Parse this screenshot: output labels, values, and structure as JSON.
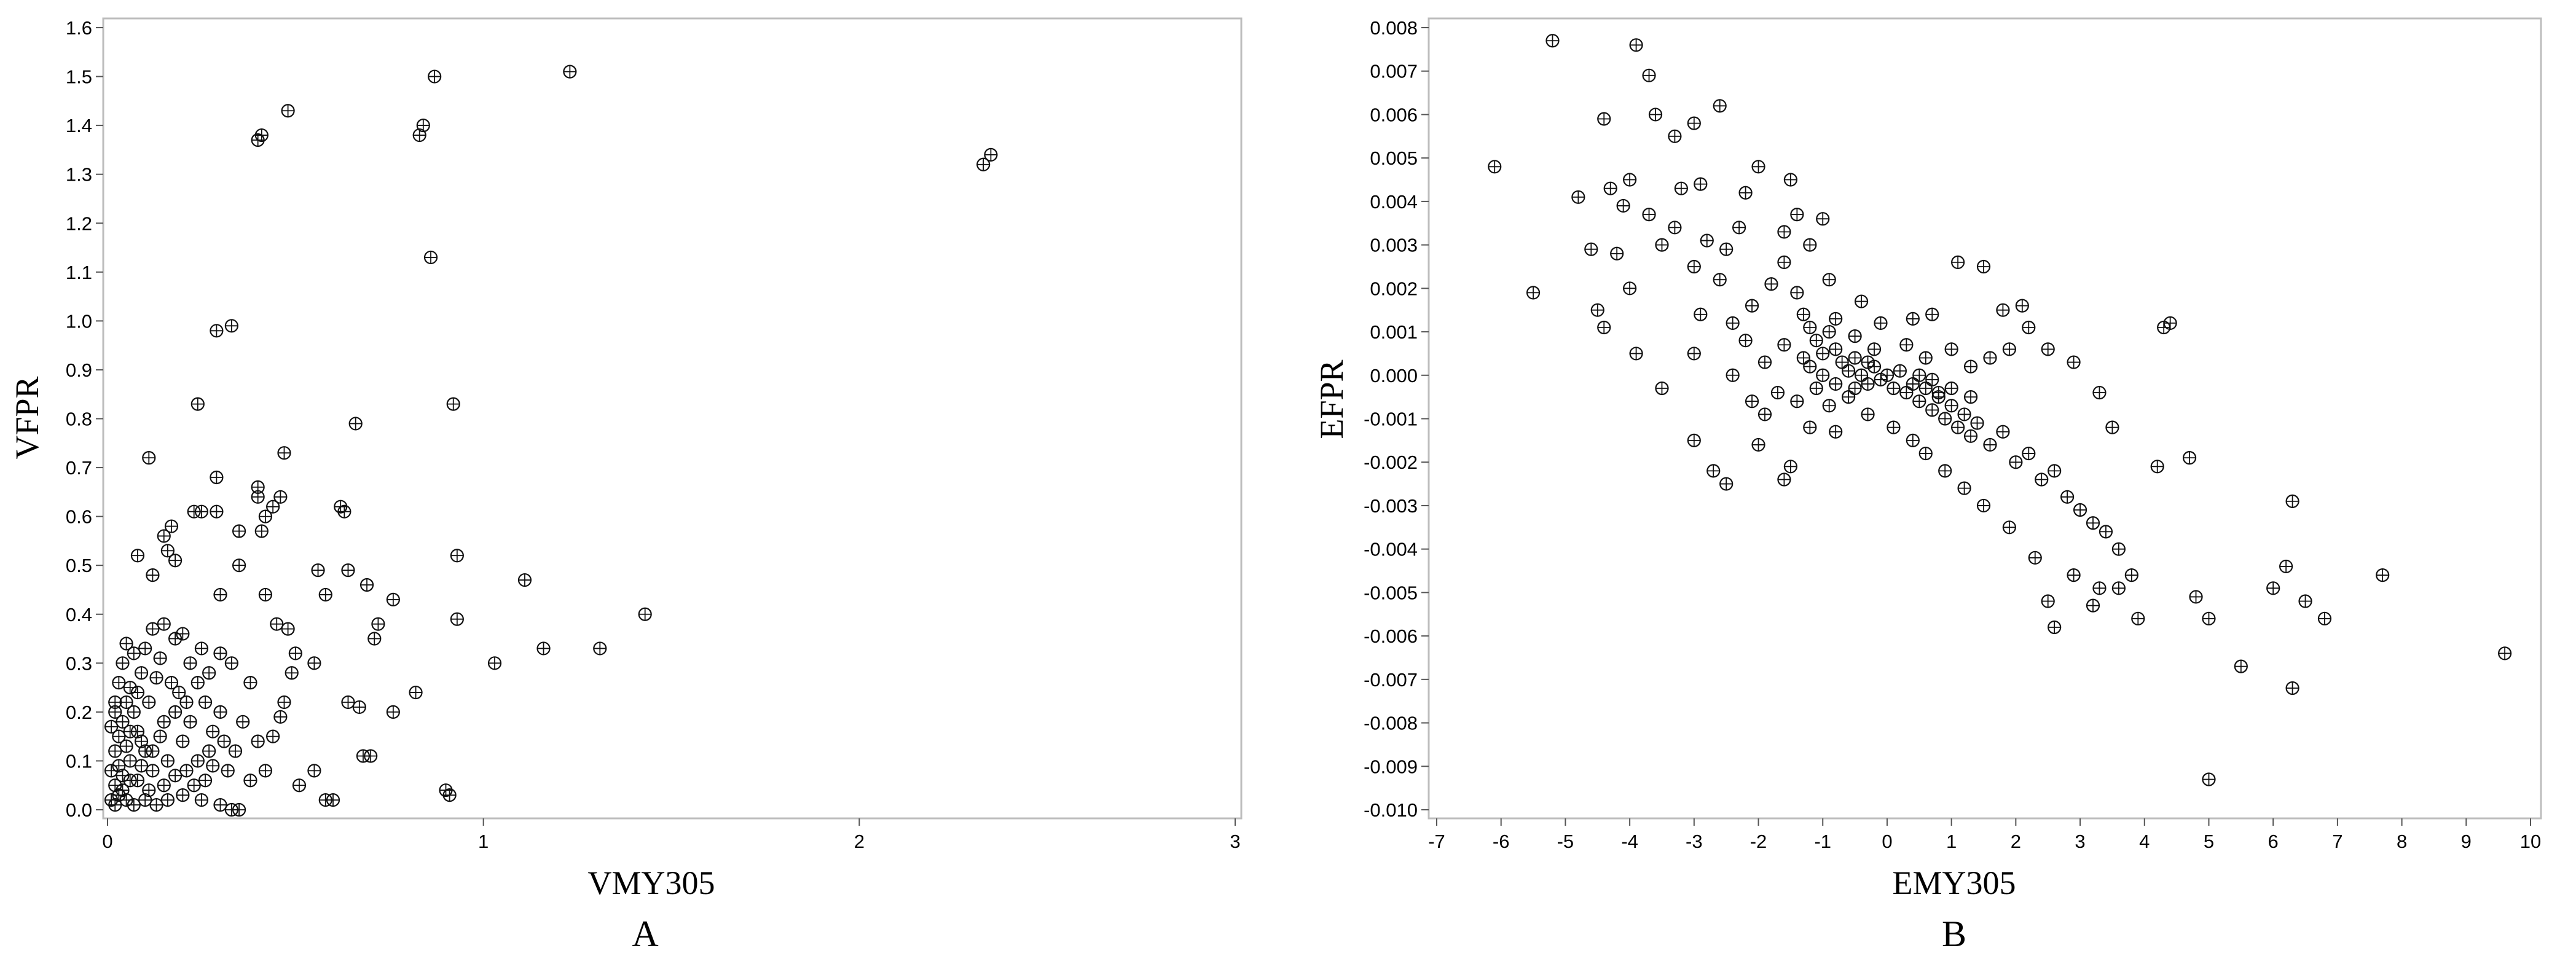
{
  "chart_data": [
    {
      "type": "scatter",
      "panel_label": "A",
      "xlabel": "VMY305",
      "ylabel": "VFPR",
      "xlim": [
        0,
        3
      ],
      "ylim": [
        0,
        1.6
      ],
      "x_ticks": [
        "0",
        "1",
        "2",
        "3"
      ],
      "x_tick_values": [
        0,
        1,
        2,
        3
      ],
      "y_ticks": [
        "0.0",
        "0.1",
        "0.2",
        "0.3",
        "0.4",
        "0.5",
        "0.6",
        "0.7",
        "0.8",
        "0.9",
        "1.0",
        "1.1",
        "1.2",
        "1.3",
        "1.4",
        "1.5",
        "1.6"
      ],
      "y_tick_values": [
        0,
        0.1,
        0.2,
        0.3,
        0.4,
        0.5,
        0.6,
        0.7,
        0.8,
        0.9,
        1.0,
        1.1,
        1.2,
        1.3,
        1.4,
        1.5,
        1.6
      ],
      "grid": false,
      "marker": "circle-plus",
      "points": [
        [
          0.48,
          1.43
        ],
        [
          0.41,
          1.38
        ],
        [
          0.4,
          1.37
        ],
        [
          0.84,
          1.4
        ],
        [
          0.83,
          1.38
        ],
        [
          0.87,
          1.5
        ],
        [
          1.23,
          1.51
        ],
        [
          2.35,
          1.34
        ],
        [
          2.33,
          1.32
        ],
        [
          0.86,
          1.13
        ],
        [
          0.29,
          0.98
        ],
        [
          0.33,
          0.99
        ],
        [
          0.24,
          0.83
        ],
        [
          0.92,
          0.83
        ],
        [
          0.66,
          0.79
        ],
        [
          0.11,
          0.72
        ],
        [
          0.47,
          0.73
        ],
        [
          0.29,
          0.68
        ],
        [
          0.4,
          0.66
        ],
        [
          0.4,
          0.64
        ],
        [
          0.46,
          0.64
        ],
        [
          0.44,
          0.62
        ],
        [
          0.42,
          0.6
        ],
        [
          0.41,
          0.57
        ],
        [
          0.63,
          0.61
        ],
        [
          0.62,
          0.62
        ],
        [
          0.25,
          0.61
        ],
        [
          0.23,
          0.61
        ],
        [
          0.29,
          0.61
        ],
        [
          0.35,
          0.57
        ],
        [
          0.17,
          0.58
        ],
        [
          0.15,
          0.56
        ],
        [
          0.16,
          0.53
        ],
        [
          0.18,
          0.51
        ],
        [
          0.08,
          0.52
        ],
        [
          0.35,
          0.5
        ],
        [
          0.12,
          0.48
        ],
        [
          0.56,
          0.49
        ],
        [
          0.64,
          0.49
        ],
        [
          0.93,
          0.52
        ],
        [
          1.11,
          0.47
        ],
        [
          0.58,
          0.44
        ],
        [
          0.69,
          0.46
        ],
        [
          0.42,
          0.44
        ],
        [
          0.3,
          0.44
        ],
        [
          0.45,
          0.38
        ],
        [
          0.48,
          0.37
        ],
        [
          0.72,
          0.38
        ],
        [
          0.71,
          0.35
        ],
        [
          0.76,
          0.43
        ],
        [
          0.93,
          0.39
        ],
        [
          1.43,
          0.4
        ],
        [
          0.5,
          0.32
        ],
        [
          0.55,
          0.3
        ],
        [
          1.31,
          0.33
        ],
        [
          1.16,
          0.33
        ],
        [
          1.03,
          0.3
        ],
        [
          0.49,
          0.28
        ],
        [
          0.64,
          0.22
        ],
        [
          0.67,
          0.21
        ],
        [
          0.76,
          0.2
        ],
        [
          0.82,
          0.24
        ],
        [
          0.47,
          0.22
        ],
        [
          0.46,
          0.19
        ],
        [
          0.44,
          0.15
        ],
        [
          0.68,
          0.11
        ],
        [
          0.7,
          0.11
        ],
        [
          0.51,
          0.05
        ],
        [
          0.55,
          0.08
        ],
        [
          0.6,
          0.02
        ],
        [
          0.58,
          0.02
        ],
        [
          0.91,
          0.03
        ],
        [
          0.9,
          0.04
        ],
        [
          0.38,
          0.26
        ],
        [
          0.33,
          0.3
        ],
        [
          0.3,
          0.32
        ],
        [
          0.27,
          0.28
        ],
        [
          0.25,
          0.33
        ],
        [
          0.22,
          0.3
        ],
        [
          0.2,
          0.36
        ],
        [
          0.18,
          0.35
        ],
        [
          0.15,
          0.38
        ],
        [
          0.12,
          0.37
        ],
        [
          0.1,
          0.33
        ],
        [
          0.09,
          0.28
        ],
        [
          0.07,
          0.32
        ],
        [
          0.06,
          0.25
        ],
        [
          0.05,
          0.22
        ],
        [
          0.04,
          0.18
        ],
        [
          0.03,
          0.15
        ],
        [
          0.02,
          0.12
        ],
        [
          0.01,
          0.08
        ],
        [
          0.02,
          0.05
        ],
        [
          0.03,
          0.03
        ],
        [
          0.05,
          0.02
        ],
        [
          0.07,
          0.01
        ],
        [
          0.1,
          0.02
        ],
        [
          0.13,
          0.01
        ],
        [
          0.16,
          0.02
        ],
        [
          0.2,
          0.03
        ],
        [
          0.25,
          0.02
        ],
        [
          0.3,
          0.01
        ],
        [
          0.35,
          0.0
        ],
        [
          0.33,
          0.0
        ],
        [
          0.04,
          0.07
        ],
        [
          0.06,
          0.1
        ],
        [
          0.08,
          0.06
        ],
        [
          0.1,
          0.12
        ],
        [
          0.12,
          0.08
        ],
        [
          0.14,
          0.15
        ],
        [
          0.16,
          0.1
        ],
        [
          0.18,
          0.2
        ],
        [
          0.2,
          0.14
        ],
        [
          0.22,
          0.18
        ],
        [
          0.24,
          0.1
        ],
        [
          0.26,
          0.22
        ],
        [
          0.28,
          0.16
        ],
        [
          0.3,
          0.2
        ],
        [
          0.32,
          0.08
        ],
        [
          0.34,
          0.12
        ],
        [
          0.36,
          0.18
        ],
        [
          0.38,
          0.06
        ],
        [
          0.4,
          0.14
        ],
        [
          0.42,
          0.08
        ],
        [
          0.02,
          0.2
        ],
        [
          0.03,
          0.26
        ],
        [
          0.04,
          0.3
        ],
        [
          0.05,
          0.34
        ],
        [
          0.06,
          0.16
        ],
        [
          0.07,
          0.2
        ],
        [
          0.08,
          0.24
        ],
        [
          0.09,
          0.14
        ],
        [
          0.11,
          0.22
        ],
        [
          0.13,
          0.27
        ],
        [
          0.14,
          0.31
        ],
        [
          0.17,
          0.26
        ],
        [
          0.19,
          0.24
        ],
        [
          0.21,
          0.08
        ],
        [
          0.23,
          0.05
        ],
        [
          0.26,
          0.06
        ],
        [
          0.28,
          0.09
        ],
        [
          0.31,
          0.14
        ],
        [
          0.01,
          0.02
        ],
        [
          0.02,
          0.01
        ],
        [
          0.03,
          0.09
        ],
        [
          0.05,
          0.13
        ],
        [
          0.08,
          0.16
        ],
        [
          0.11,
          0.04
        ],
        [
          0.15,
          0.05
        ],
        [
          0.18,
          0.07
        ],
        [
          0.01,
          0.17
        ],
        [
          0.02,
          0.22
        ],
        [
          0.04,
          0.04
        ],
        [
          0.06,
          0.06
        ],
        [
          0.09,
          0.09
        ],
        [
          0.12,
          0.12
        ],
        [
          0.15,
          0.18
        ],
        [
          0.21,
          0.22
        ],
        [
          0.24,
          0.26
        ],
        [
          0.27,
          0.12
        ]
      ]
    },
    {
      "type": "scatter",
      "panel_label": "B",
      "xlabel": "EMY305",
      "ylabel": "EFPR",
      "xlim": [
        -7,
        10
      ],
      "ylim": [
        -0.01,
        0.008
      ],
      "x_ticks": [
        "-7",
        "-6",
        "-5",
        "-4",
        "-3",
        "-2",
        "-1",
        "0",
        "1",
        "2",
        "3",
        "4",
        "5",
        "6",
        "7",
        "8",
        "9",
        "10"
      ],
      "x_tick_values": [
        -7,
        -6,
        -5,
        -4,
        -3,
        -2,
        -1,
        0,
        1,
        2,
        3,
        4,
        5,
        6,
        7,
        8,
        9,
        10
      ],
      "y_ticks": [
        "0.008",
        "0.007",
        "0.006",
        "0.005",
        "0.004",
        "0.003",
        "0.002",
        "0.001",
        "0.000",
        "-0.001",
        "-0.002",
        "-0.003",
        "-0.004",
        "-0.005",
        "-0.006",
        "-0.007",
        "-0.008",
        "-0.009",
        "-0.010"
      ],
      "y_tick_values": [
        0.008,
        0.007,
        0.006,
        0.005,
        0.004,
        0.003,
        0.002,
        0.001,
        0.0,
        -0.001,
        -0.002,
        -0.003,
        -0.004,
        -0.005,
        -0.006,
        -0.007,
        -0.008,
        -0.009,
        -0.01
      ],
      "grid": false,
      "marker": "circle-plus",
      "points": [
        [
          -5.2,
          0.0077
        ],
        [
          -3.9,
          0.0076
        ],
        [
          -3.7,
          0.0069
        ],
        [
          -2.6,
          0.0062
        ],
        [
          -6.1,
          0.0048
        ],
        [
          -5.5,
          0.0019
        ],
        [
          -4.4,
          0.0059
        ],
        [
          -3.6,
          0.006
        ],
        [
          -3.3,
          0.0055
        ],
        [
          -3.0,
          0.0058
        ],
        [
          -4.8,
          0.0041
        ],
        [
          -4.3,
          0.0043
        ],
        [
          -4.1,
          0.0039
        ],
        [
          -4.0,
          0.0045
        ],
        [
          -3.7,
          0.0037
        ],
        [
          -3.2,
          0.0043
        ],
        [
          -2.9,
          0.0044
        ],
        [
          -2.2,
          0.0042
        ],
        [
          -2.0,
          0.0048
        ],
        [
          -1.5,
          0.0045
        ],
        [
          -4.6,
          0.0029
        ],
        [
          -4.2,
          0.0028
        ],
        [
          -3.5,
          0.003
        ],
        [
          -3.3,
          0.0034
        ],
        [
          -3.0,
          0.0025
        ],
        [
          -2.8,
          0.0031
        ],
        [
          -2.5,
          0.0029
        ],
        [
          -4.5,
          0.0015
        ],
        [
          -4.4,
          0.0011
        ],
        [
          -4.0,
          0.002
        ],
        [
          -3.9,
          0.0005
        ],
        [
          -3.5,
          -0.0003
        ],
        [
          -3.0,
          -0.0015
        ],
        [
          -2.7,
          -0.0022
        ],
        [
          -2.5,
          -0.0025
        ],
        [
          -2.0,
          -0.0016
        ],
        [
          -1.6,
          -0.0024
        ],
        [
          -1.5,
          -0.0021
        ],
        [
          -1.2,
          -0.0012
        ],
        [
          -0.8,
          -0.0013
        ],
        [
          -2.4,
          0.0012
        ],
        [
          -2.1,
          0.0016
        ],
        [
          -1.8,
          0.0021
        ],
        [
          -1.6,
          0.0026
        ],
        [
          -1.4,
          0.0019
        ],
        [
          -1.3,
          0.0014
        ],
        [
          -1.2,
          0.0011
        ],
        [
          -1.1,
          0.0008
        ],
        [
          -1.0,
          0.0005
        ],
        [
          -0.9,
          0.001
        ],
        [
          -0.8,
          0.0006
        ],
        [
          -0.7,
          0.0003
        ],
        [
          -0.6,
          0.0001
        ],
        [
          -0.5,
          0.0004
        ],
        [
          -0.4,
          0.0
        ],
        [
          -0.3,
          -0.0002
        ],
        [
          -0.2,
          0.0002
        ],
        [
          -0.1,
          -0.0001
        ],
        [
          0.0,
          0.0
        ],
        [
          0.1,
          -0.0003
        ],
        [
          0.2,
          0.0001
        ],
        [
          0.3,
          -0.0004
        ],
        [
          0.4,
          -0.0002
        ],
        [
          0.5,
          -0.0006
        ],
        [
          0.6,
          -0.0003
        ],
        [
          0.7,
          -0.0008
        ],
        [
          0.8,
          -0.0005
        ],
        [
          0.9,
          -0.001
        ],
        [
          1.0,
          -0.0007
        ],
        [
          1.1,
          -0.0012
        ],
        [
          1.2,
          -0.0009
        ],
        [
          1.3,
          -0.0014
        ],
        [
          1.4,
          -0.0011
        ],
        [
          1.6,
          -0.0016
        ],
        [
          1.8,
          -0.0013
        ],
        [
          2.0,
          -0.002
        ],
        [
          2.2,
          -0.0018
        ],
        [
          2.4,
          -0.0024
        ],
        [
          2.6,
          -0.0022
        ],
        [
          2.8,
          -0.0028
        ],
        [
          3.0,
          -0.0031
        ],
        [
          3.2,
          -0.0034
        ],
        [
          3.4,
          -0.0036
        ],
        [
          3.6,
          -0.004
        ],
        [
          3.8,
          -0.0046
        ],
        [
          2.5,
          -0.0052
        ],
        [
          2.6,
          -0.0058
        ],
        [
          3.2,
          -0.0053
        ],
        [
          3.6,
          -0.0049
        ],
        [
          3.9,
          -0.0056
        ],
        [
          4.2,
          -0.0021
        ],
        [
          4.3,
          0.0011
        ],
        [
          4.4,
          0.0012
        ],
        [
          4.7,
          -0.0019
        ],
        [
          4.8,
          -0.0051
        ],
        [
          5.0,
          -0.0056
        ],
        [
          5.0,
          -0.0093
        ],
        [
          5.5,
          -0.0067
        ],
        [
          6.0,
          -0.0049
        ],
        [
          6.2,
          -0.0044
        ],
        [
          6.3,
          -0.0029
        ],
        [
          6.5,
          -0.0052
        ],
        [
          6.3,
          -0.0072
        ],
        [
          6.8,
          -0.0056
        ],
        [
          7.7,
          -0.0046
        ],
        [
          9.6,
          -0.0064
        ],
        [
          2.1,
          0.0016
        ],
        [
          1.8,
          0.0015
        ],
        [
          1.5,
          0.0025
        ],
        [
          1.1,
          0.0026
        ],
        [
          0.7,
          0.0014
        ],
        [
          0.4,
          0.0013
        ],
        [
          -0.1,
          0.0012
        ],
        [
          -0.4,
          0.0017
        ],
        [
          -0.9,
          0.0022
        ],
        [
          -1.2,
          0.003
        ],
        [
          -1.0,
          0.0036
        ],
        [
          -1.4,
          0.0037
        ],
        [
          -1.6,
          0.0033
        ],
        [
          -2.3,
          0.0034
        ],
        [
          -2.6,
          0.0022
        ],
        [
          -2.9,
          0.0014
        ],
        [
          -3.0,
          0.0005
        ],
        [
          -2.4,
          0.0
        ],
        [
          -2.1,
          -0.0006
        ],
        [
          -1.9,
          -0.0009
        ],
        [
          -1.7,
          -0.0004
        ],
        [
          -1.4,
          -0.0006
        ],
        [
          -1.1,
          -0.0003
        ],
        [
          -0.9,
          -0.0007
        ],
        [
          -0.6,
          -0.0005
        ],
        [
          -0.3,
          -0.0009
        ],
        [
          0.1,
          -0.0012
        ],
        [
          0.4,
          -0.0015
        ],
        [
          0.6,
          -0.0018
        ],
        [
          0.9,
          -0.0022
        ],
        [
          1.2,
          -0.0026
        ],
        [
          1.5,
          -0.003
        ],
        [
          1.9,
          -0.0035
        ],
        [
          2.3,
          -0.0042
        ],
        [
          2.9,
          -0.0046
        ],
        [
          3.3,
          -0.0049
        ],
        [
          3.5,
          -0.0012
        ],
        [
          3.3,
          -0.0004
        ],
        [
          2.9,
          0.0003
        ],
        [
          2.5,
          0.0006
        ],
        [
          2.2,
          0.0011
        ],
        [
          1.9,
          0.0006
        ],
        [
          1.6,
          0.0004
        ],
        [
          1.3,
          0.0002
        ],
        [
          1.0,
          0.0006
        ],
        [
          0.6,
          0.0004
        ],
        [
          0.3,
          0.0007
        ],
        [
          -0.2,
          0.0006
        ],
        [
          -0.5,
          0.0009
        ],
        [
          -0.8,
          0.0013
        ],
        [
          -1.3,
          0.0004
        ],
        [
          -1.6,
          0.0007
        ],
        [
          -1.9,
          0.0003
        ],
        [
          -2.2,
          0.0008
        ],
        [
          -1.0,
          0.0
        ],
        [
          -0.8,
          -0.0002
        ],
        [
          -0.5,
          -0.0003
        ],
        [
          -1.2,
          0.0002
        ],
        [
          0.7,
          -0.0001
        ],
        [
          1.0,
          -0.0003
        ],
        [
          1.3,
          -0.0005
        ],
        [
          0.5,
          0.0
        ],
        [
          0.8,
          -0.0004
        ],
        [
          -0.3,
          0.0003
        ]
      ]
    }
  ]
}
